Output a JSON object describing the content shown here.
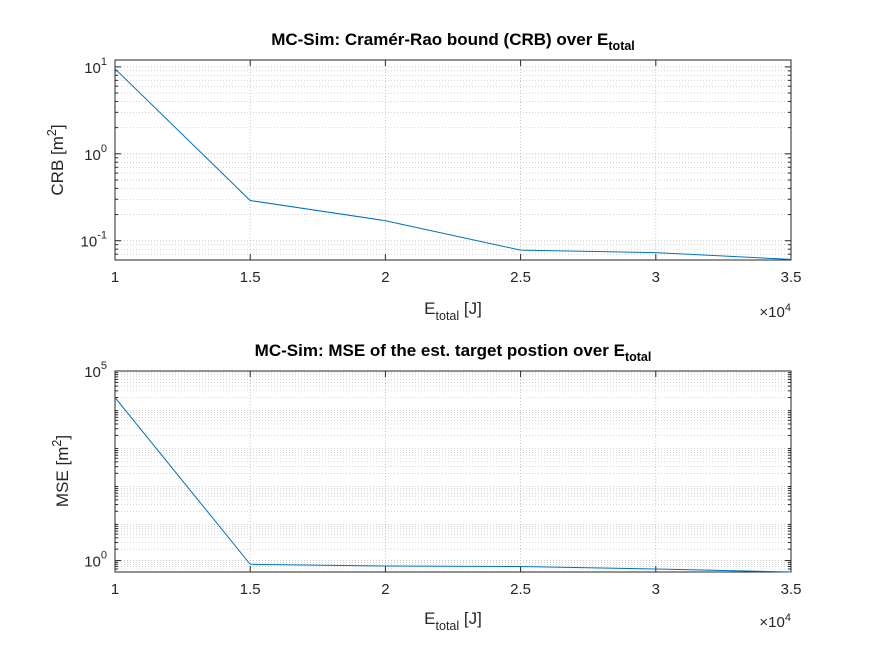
{
  "figure": {
    "background": "#ffffff",
    "axes_color": "#262626",
    "grid_color": "#b9b9b9",
    "line_color": "#0072bd"
  },
  "chart_data": [
    {
      "type": "line",
      "title_main": "MC-Sim: Cramér-Rao bound (CRB) over E",
      "title_sub": "total",
      "xlabel_main": "E",
      "xlabel_sub": "total",
      "xlabel_unit": " [J]",
      "ylabel_main": "CRB [m",
      "ylabel_sup": "2",
      "ylabel_end": "]",
      "x_multiplier_prefix": "×10",
      "x_multiplier_exp": "4",
      "y_scale": "log",
      "xlim": [
        10000,
        35000
      ],
      "ylim": [
        0.06,
        12
      ],
      "x_ticks": [
        10000,
        15000,
        20000,
        25000,
        30000,
        35000
      ],
      "x_tick_labels": [
        "1",
        "1.5",
        "2",
        "2.5",
        "3",
        "3.5"
      ],
      "y_ticks": [
        0.1,
        1,
        10
      ],
      "y_tick_labels": [
        {
          "base": "10",
          "exp": "-1"
        },
        {
          "base": "10",
          "exp": "0"
        },
        {
          "base": "10",
          "exp": "1"
        }
      ],
      "grid": true,
      "minor_grid": true,
      "x": [
        10000,
        15000,
        20000,
        25000,
        30000,
        35000
      ],
      "y": [
        9.5,
        0.29,
        0.17,
        0.078,
        0.073,
        0.061
      ]
    },
    {
      "type": "line",
      "title_main": "MC-Sim: MSE of the est. target postion over E",
      "title_sub": "total",
      "xlabel_main": "E",
      "xlabel_sub": "total",
      "xlabel_unit": " [J]",
      "ylabel_main": "MSE [m",
      "ylabel_sup": "2",
      "ylabel_end": "]",
      "x_multiplier_prefix": "×10",
      "x_multiplier_exp": "4",
      "y_scale": "log",
      "xlim": [
        10000,
        35000
      ],
      "ylim": [
        0.5,
        100000
      ],
      "x_ticks": [
        10000,
        15000,
        20000,
        25000,
        30000,
        35000
      ],
      "x_tick_labels": [
        "1",
        "1.5",
        "2",
        "2.5",
        "3",
        "3.5"
      ],
      "y_ticks": [
        1,
        100000
      ],
      "y_tick_labels": [
        {
          "base": "10",
          "exp": "0"
        },
        {
          "base": "10",
          "exp": "5"
        }
      ],
      "grid": true,
      "minor_grid": true,
      "x": [
        10000,
        15000,
        20000,
        25000,
        30000,
        35000
      ],
      "y": [
        20000,
        0.8,
        0.72,
        0.7,
        0.6,
        0.5
      ]
    }
  ]
}
